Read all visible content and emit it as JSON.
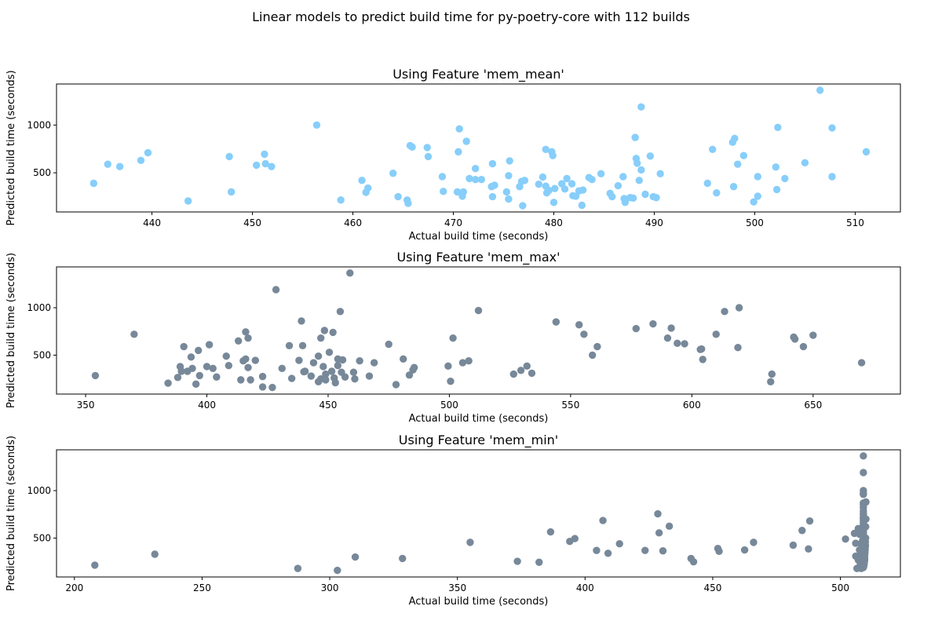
{
  "figure": {
    "suptitle": "Linear models to predict build time for py-poetry-core with 112 builds"
  },
  "chart_data": [
    {
      "type": "scatter",
      "title": "Using Feature 'mem_mean'",
      "xlabel": "Actual build time (seconds)",
      "ylabel": "Predicted build time (seconds)",
      "xlim": [
        430.5,
        514.5
      ],
      "ylim": [
        90,
        1430
      ],
      "xticks": [
        440,
        450,
        460,
        470,
        480,
        490,
        500,
        510
      ],
      "yticks": [
        500,
        1000
      ],
      "marker_color": "#87CEFA",
      "grid": false,
      "points": [
        [
          434.2,
          390
        ],
        [
          435.6,
          590
        ],
        [
          436.8,
          565
        ],
        [
          438.9,
          630
        ],
        [
          439.6,
          710
        ],
        [
          443.6,
          205
        ],
        [
          447.7,
          670
        ],
        [
          447.9,
          300
        ],
        [
          450.4,
          580
        ],
        [
          451.2,
          695
        ],
        [
          451.3,
          595
        ],
        [
          451.9,
          565
        ],
        [
          456.4,
          1000
        ],
        [
          458.8,
          215
        ],
        [
          460.9,
          420
        ],
        [
          461.3,
          295
        ],
        [
          461.5,
          340
        ],
        [
          464,
          495
        ],
        [
          464.5,
          250
        ],
        [
          465.4,
          215
        ],
        [
          465.5,
          180
        ],
        [
          465.7,
          785
        ],
        [
          465.9,
          770
        ],
        [
          467.4,
          765
        ],
        [
          467.5,
          670
        ],
        [
          468.9,
          460
        ],
        [
          469,
          305
        ],
        [
          470.4,
          300
        ],
        [
          470.5,
          720
        ],
        [
          470.6,
          960
        ],
        [
          470.9,
          255
        ],
        [
          471,
          300
        ],
        [
          471.3,
          830
        ],
        [
          471.6,
          440
        ],
        [
          472.2,
          545
        ],
        [
          472.2,
          430
        ],
        [
          472.8,
          430
        ],
        [
          473.8,
          355
        ],
        [
          473.9,
          595
        ],
        [
          473.9,
          250
        ],
        [
          474.1,
          370
        ],
        [
          475.3,
          300
        ],
        [
          475.5,
          470
        ],
        [
          475.5,
          225
        ],
        [
          475.6,
          625
        ],
        [
          476.6,
          355
        ],
        [
          476.8,
          410
        ],
        [
          476.9,
          155
        ],
        [
          477.1,
          420
        ],
        [
          478.5,
          380
        ],
        [
          478.9,
          455
        ],
        [
          479.2,
          360
        ],
        [
          479.2,
          745
        ],
        [
          479.3,
          290
        ],
        [
          479.5,
          315
        ],
        [
          479.8,
          720
        ],
        [
          479.9,
          680
        ],
        [
          480,
          190
        ],
        [
          480.1,
          335
        ],
        [
          480.8,
          385
        ],
        [
          481.1,
          330
        ],
        [
          481.3,
          440
        ],
        [
          481.8,
          385
        ],
        [
          481.9,
          260
        ],
        [
          482.2,
          255
        ],
        [
          482.5,
          310
        ],
        [
          482.8,
          160
        ],
        [
          482.9,
          320
        ],
        [
          483.5,
          450
        ],
        [
          483.8,
          430
        ],
        [
          484.7,
          490
        ],
        [
          485.6,
          285
        ],
        [
          485.8,
          250
        ],
        [
          486.4,
          365
        ],
        [
          486.9,
          460
        ],
        [
          487,
          230
        ],
        [
          487.1,
          190
        ],
        [
          487.6,
          240
        ],
        [
          487.9,
          235
        ],
        [
          488.1,
          870
        ],
        [
          488.2,
          650
        ],
        [
          488.3,
          600
        ],
        [
          488.5,
          420
        ],
        [
          488.7,
          530
        ],
        [
          488.7,
          1190
        ],
        [
          489.1,
          275
        ],
        [
          489.6,
          675
        ],
        [
          489.9,
          250
        ],
        [
          490.2,
          240
        ],
        [
          490.6,
          490
        ],
        [
          495.3,
          390
        ],
        [
          495.8,
          745
        ],
        [
          496.2,
          290
        ],
        [
          497.8,
          820
        ],
        [
          497.9,
          355
        ],
        [
          498,
          860
        ],
        [
          498.3,
          590
        ],
        [
          498.9,
          680
        ],
        [
          499.9,
          195
        ],
        [
          500.3,
          255
        ],
        [
          500.3,
          460
        ],
        [
          502.1,
          560
        ],
        [
          502.2,
          325
        ],
        [
          502.3,
          975
        ],
        [
          503,
          440
        ],
        [
          505,
          605
        ],
        [
          506.5,
          1365
        ],
        [
          507.7,
          970
        ],
        [
          507.7,
          460
        ],
        [
          511.1,
          720
        ]
      ]
    },
    {
      "type": "scatter",
      "title": "Using Feature 'mem_max'",
      "xlabel": "Actual build time (seconds)",
      "ylabel": "Predicted build time (seconds)",
      "xlim": [
        338,
        686
      ],
      "ylim": [
        90,
        1430
      ],
      "xticks": [
        350,
        400,
        450,
        500,
        550,
        600,
        650
      ],
      "yticks": [
        500,
        1000
      ],
      "marker_color": "#778899",
      "grid": false,
      "points": [
        [
          354,
          285
        ],
        [
          370,
          720
        ],
        [
          384,
          205
        ],
        [
          388,
          265
        ],
        [
          389,
          380
        ],
        [
          389.5,
          330
        ],
        [
          390.5,
          590
        ],
        [
          392,
          330
        ],
        [
          393.5,
          480
        ],
        [
          394,
          360
        ],
        [
          395.5,
          195
        ],
        [
          396.5,
          550
        ],
        [
          397,
          285
        ],
        [
          400,
          380
        ],
        [
          401,
          610
        ],
        [
          402.5,
          360
        ],
        [
          404,
          270
        ],
        [
          408,
          490
        ],
        [
          409,
          390
        ],
        [
          413,
          650
        ],
        [
          414,
          240
        ],
        [
          415,
          440
        ],
        [
          416,
          745
        ],
        [
          416,
          460
        ],
        [
          417,
          370
        ],
        [
          417,
          680
        ],
        [
          418,
          240
        ],
        [
          420,
          445
        ],
        [
          423,
          165
        ],
        [
          423,
          275
        ],
        [
          427,
          160
        ],
        [
          428.5,
          1190
        ],
        [
          431,
          360
        ],
        [
          434,
          600
        ],
        [
          435,
          255
        ],
        [
          438,
          445
        ],
        [
          439,
          860
        ],
        [
          439.5,
          600
        ],
        [
          440,
          325
        ],
        [
          440.5,
          330
        ],
        [
          443,
          280
        ],
        [
          444,
          420
        ],
        [
          446,
          490
        ],
        [
          446,
          220
        ],
        [
          447,
          680
        ],
        [
          447,
          250
        ],
        [
          448,
          380
        ],
        [
          448.5,
          760
        ],
        [
          449,
          300
        ],
        [
          449,
          240
        ],
        [
          450.5,
          530
        ],
        [
          451.5,
          330
        ],
        [
          452,
          740
        ],
        [
          452.5,
          260
        ],
        [
          453,
          210
        ],
        [
          454,
          390
        ],
        [
          454,
          460
        ],
        [
          455,
          960
        ],
        [
          455.5,
          320
        ],
        [
          456,
          450
        ],
        [
          457,
          270
        ],
        [
          459,
          1365
        ],
        [
          460.5,
          320
        ],
        [
          461,
          250
        ],
        [
          463,
          440
        ],
        [
          467,
          280
        ],
        [
          469,
          420
        ],
        [
          475,
          615
        ],
        [
          478,
          190
        ],
        [
          481,
          460
        ],
        [
          483.5,
          290
        ],
        [
          485,
          345
        ],
        [
          485.5,
          370
        ],
        [
          499.5,
          385
        ],
        [
          500.5,
          225
        ],
        [
          501.5,
          680
        ],
        [
          505.5,
          420
        ],
        [
          508,
          440
        ],
        [
          512,
          970
        ],
        [
          526.5,
          300
        ],
        [
          529.5,
          340
        ],
        [
          532,
          385
        ],
        [
          534,
          310
        ],
        [
          544,
          850
        ],
        [
          553.5,
          820
        ],
        [
          555.5,
          720
        ],
        [
          559,
          500
        ],
        [
          561,
          590
        ],
        [
          577,
          780
        ],
        [
          584,
          830
        ],
        [
          590,
          680
        ],
        [
          591.5,
          785
        ],
        [
          594,
          625
        ],
        [
          597,
          620
        ],
        [
          603.5,
          560
        ],
        [
          604,
          565
        ],
        [
          604.5,
          455
        ],
        [
          610,
          720
        ],
        [
          613.5,
          960
        ],
        [
          619,
          580
        ],
        [
          619.5,
          1000
        ],
        [
          632.5,
          220
        ],
        [
          633,
          300
        ],
        [
          642,
          690
        ],
        [
          642.5,
          670
        ],
        [
          646,
          590
        ],
        [
          650,
          710
        ],
        [
          670,
          420
        ]
      ]
    },
    {
      "type": "scatter",
      "title": "Using Feature 'mem_min'",
      "xlabel": "Actual build time (seconds)",
      "ylabel": "Predicted build time (seconds)",
      "xlim": [
        193,
        523.5
      ],
      "ylim": [
        90,
        1430
      ],
      "xticks": [
        200,
        250,
        300,
        350,
        400,
        450,
        500
      ],
      "yticks": [
        500,
        1000
      ],
      "marker_color": "#778899",
      "grid": false,
      "points": [
        [
          208,
          215
        ],
        [
          231.5,
          330
        ],
        [
          287.5,
          180
        ],
        [
          303,
          160
        ],
        [
          310,
          300
        ],
        [
          328.5,
          285
        ],
        [
          355,
          455
        ],
        [
          373.5,
          255
        ],
        [
          382,
          245
        ],
        [
          386.5,
          565
        ],
        [
          394,
          465
        ],
        [
          396,
          495
        ],
        [
          404.5,
          370
        ],
        [
          407,
          685
        ],
        [
          409,
          340
        ],
        [
          413.5,
          440
        ],
        [
          423.5,
          370
        ],
        [
          428.5,
          755
        ],
        [
          429,
          555
        ],
        [
          430.5,
          365
        ],
        [
          433,
          625
        ],
        [
          441.5,
          285
        ],
        [
          442.5,
          250
        ],
        [
          452,
          390
        ],
        [
          452.5,
          360
        ],
        [
          462.5,
          375
        ],
        [
          466,
          455
        ],
        [
          481.5,
          425
        ],
        [
          485,
          580
        ],
        [
          487.5,
          385
        ],
        [
          488,
          680
        ],
        [
          502,
          490
        ],
        [
          505.5,
          550
        ],
        [
          506,
          445
        ],
        [
          506,
          310
        ],
        [
          506.5,
          180
        ],
        [
          507,
          600
        ],
        [
          507,
          270
        ],
        [
          507.5,
          540
        ],
        [
          507.5,
          375
        ],
        [
          507.8,
          220
        ],
        [
          508,
          440
        ],
        [
          508,
          330
        ],
        [
          508.2,
          180
        ],
        [
          508.3,
          590
        ],
        [
          508.5,
          255
        ],
        [
          508.5,
          405
        ],
        [
          508.6,
          300
        ],
        [
          508.7,
          475
        ],
        [
          508.8,
          350
        ],
        [
          509,
          1365
        ],
        [
          509,
          1190
        ],
        [
          509,
          1000
        ],
        [
          509,
          970
        ],
        [
          509,
          960
        ],
        [
          509,
          870
        ],
        [
          509,
          850
        ],
        [
          509,
          820
        ],
        [
          509,
          785
        ],
        [
          509,
          760
        ],
        [
          509,
          745
        ],
        [
          509,
          720
        ],
        [
          509,
          710
        ],
        [
          509,
          690
        ],
        [
          509,
          670
        ],
        [
          509,
          650
        ],
        [
          509,
          630
        ],
        [
          509,
          615
        ],
        [
          509,
          600
        ],
        [
          509,
          580
        ],
        [
          509,
          560
        ],
        [
          509,
          545
        ],
        [
          509,
          530
        ],
        [
          509,
          515
        ],
        [
          509,
          500
        ],
        [
          509,
          485
        ],
        [
          509,
          470
        ],
        [
          509,
          455
        ],
        [
          509,
          440
        ],
        [
          509,
          425
        ],
        [
          509,
          410
        ],
        [
          509,
          395
        ],
        [
          509,
          380
        ],
        [
          509,
          365
        ],
        [
          509,
          350
        ],
        [
          509,
          335
        ],
        [
          509,
          320
        ],
        [
          509,
          305
        ],
        [
          509,
          290
        ],
        [
          509,
          275
        ],
        [
          509,
          260
        ],
        [
          509,
          245
        ],
        [
          509,
          230
        ],
        [
          509,
          215
        ],
        [
          509,
          200
        ],
        [
          509,
          190
        ],
        [
          509.2,
          210
        ],
        [
          509.3,
          230
        ],
        [
          509.4,
          250
        ],
        [
          509.5,
          270
        ],
        [
          509.5,
          290
        ],
        [
          509.5,
          320
        ],
        [
          509.6,
          340
        ],
        [
          509.6,
          360
        ],
        [
          509.7,
          380
        ],
        [
          509.7,
          400
        ],
        [
          509.8,
          420
        ],
        [
          509.8,
          460
        ],
        [
          509.9,
          500
        ],
        [
          509.9,
          620
        ],
        [
          510,
          700
        ],
        [
          510,
          880
        ]
      ]
    }
  ]
}
